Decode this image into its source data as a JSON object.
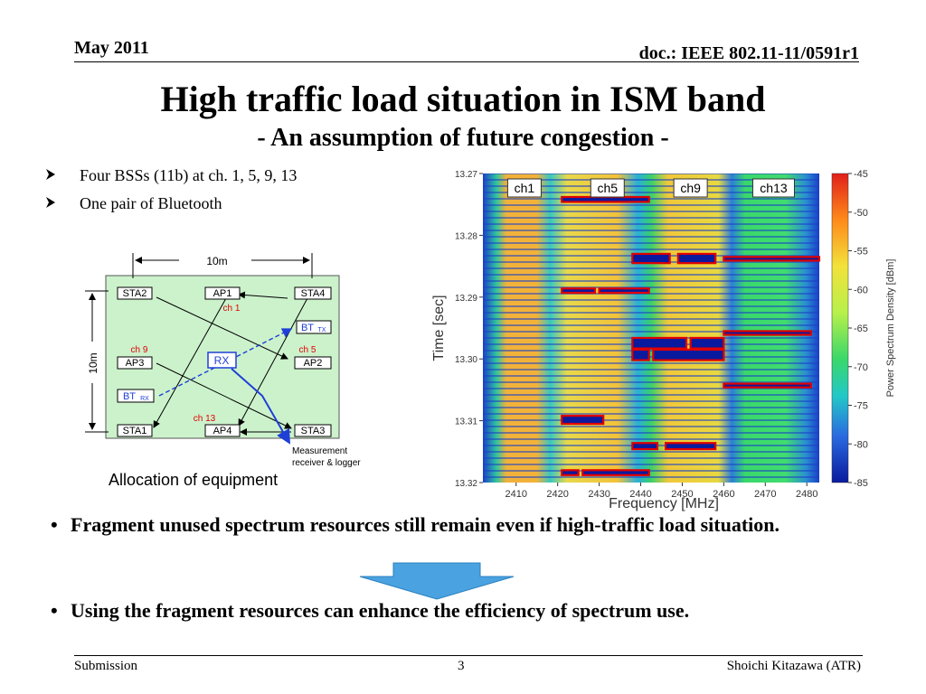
{
  "header": {
    "date": "May 2011",
    "doc": "doc.: IEEE 802.11-11/0591r1"
  },
  "title": "High traffic load situation in ISM band",
  "subtitle": "- An assumption of  future congestion -",
  "bullets_small": [
    {
      "icon": "arrow-bullet-icon",
      "text": "Four BSSs (11b) at ch. 1, 5, 9, 13"
    },
    {
      "icon": "arrow-bullet-icon",
      "text": "One pair of Bluetooth"
    }
  ],
  "diagram": {
    "width_label": "10m",
    "height_label": "10m",
    "nodes": {
      "sta2": "STA2",
      "ap1": "AP1",
      "sta4": "STA4",
      "ap3": "AP3",
      "ap2": "AP2",
      "sta1": "STA1",
      "ap4": "AP4",
      "sta3": "STA3",
      "rx": "RX",
      "bt": "BT",
      "bt_tx_sub": "TX",
      "bt_rx_sub": "RX"
    },
    "channels": {
      "ch1": "ch 1",
      "ch9": "ch 9",
      "ch5": "ch 5",
      "ch13": "ch 13"
    },
    "note_line1": "Measurement",
    "note_line2": "receiver & logger",
    "caption": "Allocation of equipment",
    "colors": {
      "area": "#ccf2cc",
      "channel": "#e00000",
      "bt": "#1f3fd6"
    }
  },
  "chart_data": {
    "type": "heatmap",
    "xlabel": "Frequency [MHz]",
    "ylabel": "Time [sec]",
    "x_ticks": [
      2410,
      2420,
      2430,
      2440,
      2450,
      2460,
      2470,
      2480
    ],
    "xlim": [
      2402,
      2483
    ],
    "y_ticks": [
      "13.27",
      "13.28",
      "13.29",
      "13.30",
      "13.31",
      "13.32"
    ],
    "ylim": [
      13.27,
      13.32
    ],
    "colorbar": {
      "label": "Power Spectrum Density [dBm]",
      "ticks": [
        -45,
        -50,
        -55,
        -60,
        -65,
        -70,
        -75,
        -80,
        -85
      ],
      "range": [
        -85,
        -45
      ]
    },
    "channel_labels": [
      {
        "text": "ch1",
        "center_mhz": 2412
      },
      {
        "text": "ch5",
        "center_mhz": 2432
      },
      {
        "text": "ch9",
        "center_mhz": 2452
      },
      {
        "text": "ch13",
        "center_mhz": 2472
      }
    ],
    "unused_regions_note": "red outlined blocks mark unused spectrum fragments",
    "unused_regions": [
      {
        "f": [
          2421,
          2442
        ],
        "t": [
          13.2738,
          13.2746
        ]
      },
      {
        "f": [
          2438,
          2447
        ],
        "t": [
          13.283,
          13.2845
        ]
      },
      {
        "f": [
          2449,
          2458
        ],
        "t": [
          13.283,
          13.2845
        ]
      },
      {
        "f": [
          2460,
          2483
        ],
        "t": [
          13.2835,
          13.2841
        ]
      },
      {
        "f": [
          2421,
          2429
        ],
        "t": [
          13.2886,
          13.2893
        ]
      },
      {
        "f": [
          2430,
          2442
        ],
        "t": [
          13.2886,
          13.2893
        ]
      },
      {
        "f": [
          2438,
          2451
        ],
        "t": [
          13.2966,
          13.2983
        ]
      },
      {
        "f": [
          2452,
          2460
        ],
        "t": [
          13.2966,
          13.2983
        ]
      },
      {
        "f": [
          2460,
          2481
        ],
        "t": [
          13.2955,
          13.2961
        ]
      },
      {
        "f": [
          2438,
          2442
        ],
        "t": [
          13.2985,
          13.3002
        ]
      },
      {
        "f": [
          2443,
          2460
        ],
        "t": [
          13.2985,
          13.3002
        ]
      },
      {
        "f": [
          2460,
          2481
        ],
        "t": [
          13.304,
          13.3046
        ]
      },
      {
        "f": [
          2421,
          2431
        ],
        "t": [
          13.3092,
          13.3105
        ]
      },
      {
        "f": [
          2438,
          2444
        ],
        "t": [
          13.3136,
          13.3146
        ]
      },
      {
        "f": [
          2446,
          2458
        ],
        "t": [
          13.3136,
          13.3146
        ]
      },
      {
        "f": [
          2421,
          2425
        ],
        "t": [
          13.318,
          13.3188
        ]
      },
      {
        "f": [
          2426,
          2442
        ],
        "t": [
          13.318,
          13.3188
        ]
      }
    ],
    "colors": {
      "outline": "#e00000",
      "fill": "#0a1a9e"
    }
  },
  "bullets_large": [
    {
      "marker": "•",
      "text": "Fragment unused spectrum resources still remain even if high-traffic load situation."
    },
    {
      "marker": "•",
      "text": "Using the fragment resources can enhance the efficiency of spectrum use."
    }
  ],
  "arrow": {
    "icon": "down-arrow-icon",
    "color": "#4aa3e0"
  },
  "footer": {
    "left": "Submission",
    "page": "3",
    "right": "Shoichi Kitazawa (ATR)"
  }
}
